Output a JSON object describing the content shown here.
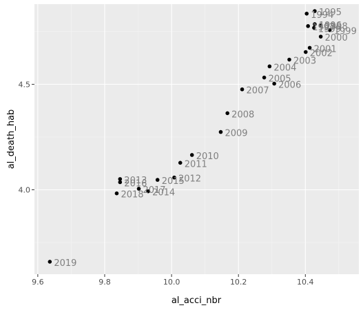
{
  "chart_data": {
    "type": "scatter",
    "title": "",
    "xlabel": "al_acci_nbr",
    "ylabel": "al_death_hab",
    "xlim": [
      9.59,
      10.56
    ],
    "ylim": [
      3.6,
      4.88
    ],
    "x_ticks": [
      9.6,
      9.8,
      10.0,
      10.2,
      10.4
    ],
    "x_tick_labels": [
      "9.6",
      "9.8",
      "10.0",
      "10.2",
      "10.4"
    ],
    "y_ticks": [
      4.0,
      4.5
    ],
    "y_tick_labels": [
      "4.0",
      "4.5"
    ],
    "grid": true,
    "legend": false,
    "point_color": "#000000",
    "label_color": "#7f7f7f",
    "panel_color": "#ebebeb",
    "points": [
      {
        "label": "1995",
        "x": 10.428,
        "y": 4.847
      },
      {
        "label": "1994",
        "x": 10.404,
        "y": 4.835
      },
      {
        "label": "1996",
        "x": 10.428,
        "y": 4.785
      },
      {
        "label": "1998",
        "x": 10.446,
        "y": 4.781
      },
      {
        "label": "1997",
        "x": 10.408,
        "y": 4.776
      },
      {
        "label": "1999",
        "x": 10.426,
        "y": 4.768
      },
      {
        "label": "1999",
        "x": 10.473,
        "y": 4.757
      },
      {
        "label": "2000",
        "x": 10.446,
        "y": 4.726
      },
      {
        "label": "2001",
        "x": 10.413,
        "y": 4.673
      },
      {
        "label": "2002",
        "x": 10.401,
        "y": 4.653
      },
      {
        "label": "2003",
        "x": 10.352,
        "y": 4.617
      },
      {
        "label": "2004",
        "x": 10.293,
        "y": 4.585
      },
      {
        "label": "2005",
        "x": 10.277,
        "y": 4.532
      },
      {
        "label": "2006",
        "x": 10.307,
        "y": 4.503
      },
      {
        "label": "2007",
        "x": 10.211,
        "y": 4.476
      },
      {
        "label": "2008",
        "x": 10.167,
        "y": 4.363
      },
      {
        "label": "2009",
        "x": 10.147,
        "y": 4.274
      },
      {
        "label": "2010",
        "x": 10.061,
        "y": 4.165
      },
      {
        "label": "2011",
        "x": 10.026,
        "y": 4.128
      },
      {
        "label": "2012",
        "x": 10.008,
        "y": 4.058
      },
      {
        "label": "2013",
        "x": 9.846,
        "y": 4.051
      },
      {
        "label": "2015",
        "x": 9.958,
        "y": 4.047
      },
      {
        "label": "2016",
        "x": 9.846,
        "y": 4.036
      },
      {
        "label": "2017",
        "x": 9.902,
        "y": 4.005
      },
      {
        "label": "2014",
        "x": 9.93,
        "y": 3.993
      },
      {
        "label": "2018",
        "x": 9.836,
        "y": 3.983
      },
      {
        "label": "2019",
        "x": 9.636,
        "y": 3.659
      }
    ]
  }
}
